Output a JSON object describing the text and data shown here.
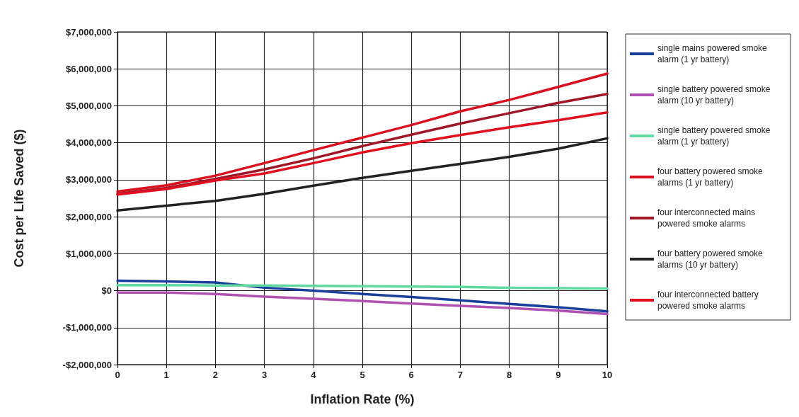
{
  "chart_data": {
    "type": "line",
    "xlabel": "Inflation Rate (%)",
    "ylabel": "Cost per Life Saved ($)",
    "x": [
      0,
      1,
      2,
      3,
      4,
      5,
      6,
      7,
      8,
      9,
      10
    ],
    "xlim": [
      0,
      10
    ],
    "xticks": [
      0,
      1,
      2,
      3,
      4,
      5,
      6,
      7,
      8,
      9,
      10
    ],
    "ylim": [
      -2000000,
      7000000
    ],
    "yticks": [
      {
        "value": -2000000,
        "label": "-$2,000,000"
      },
      {
        "value": -1000000,
        "label": "-$1,000,000"
      },
      {
        "value": 0,
        "label": "$0"
      },
      {
        "value": 1000000,
        "label": "$1,000,000"
      },
      {
        "value": 2000000,
        "label": "$2,000,000"
      },
      {
        "value": 3000000,
        "label": "$3,000,000"
      },
      {
        "value": 4000000,
        "label": "$4,000,000"
      },
      {
        "value": 5000000,
        "label": "$5,000,000"
      },
      {
        "value": 6000000,
        "label": "$6,000,000"
      },
      {
        "value": 7000000,
        "label": "$7,000,000"
      }
    ],
    "grid": true,
    "legend": "right",
    "marker": "none",
    "line_style": "solid",
    "series": [
      {
        "name": "single mains powered smoke alarm (1 yr battery)",
        "color": "#1a3f9a",
        "values": [
          270000,
          250000,
          220000,
          80000,
          0,
          -90000,
          -170000,
          -260000,
          -360000,
          -450000,
          -560000
        ]
      },
      {
        "name": "single battery powered smoke alarm (10 yr battery)",
        "color": "#b050b0",
        "values": [
          -50000,
          -50000,
          -90000,
          -160000,
          -220000,
          -280000,
          -350000,
          -410000,
          -470000,
          -540000,
          -630000
        ]
      },
      {
        "name": "single battery powered smoke alarm (1 yr battery)",
        "color": "#60d8a0",
        "values": [
          150000,
          150000,
          140000,
          140000,
          130000,
          120000,
          110000,
          100000,
          80000,
          70000,
          60000
        ]
      },
      {
        "name": "four battery powered smoke alarms (1 yr battery)",
        "color": "#d81020",
        "values": [
          2680000,
          2850000,
          3110000,
          3450000,
          3800000,
          4140000,
          4480000,
          4850000,
          5160000,
          5510000,
          5870000
        ]
      },
      {
        "name": "four interconnected mains powered smoke alarms",
        "color": "#a01828",
        "values": [
          2620000,
          2780000,
          3020000,
          3280000,
          3580000,
          3910000,
          4220000,
          4520000,
          4800000,
          5080000,
          5320000
        ]
      },
      {
        "name": "four battery powered smoke alarms (10 yr battery)",
        "color": "#222222",
        "values": [
          2170000,
          2300000,
          2430000,
          2620000,
          2840000,
          3050000,
          3240000,
          3430000,
          3620000,
          3840000,
          4120000
        ]
      },
      {
        "name": "four interconnected battery powered smoke alarms",
        "color": "#e01020",
        "values": [
          2600000,
          2750000,
          2980000,
          3170000,
          3450000,
          3740000,
          3990000,
          4210000,
          4420000,
          4610000,
          4820000
        ]
      }
    ]
  }
}
